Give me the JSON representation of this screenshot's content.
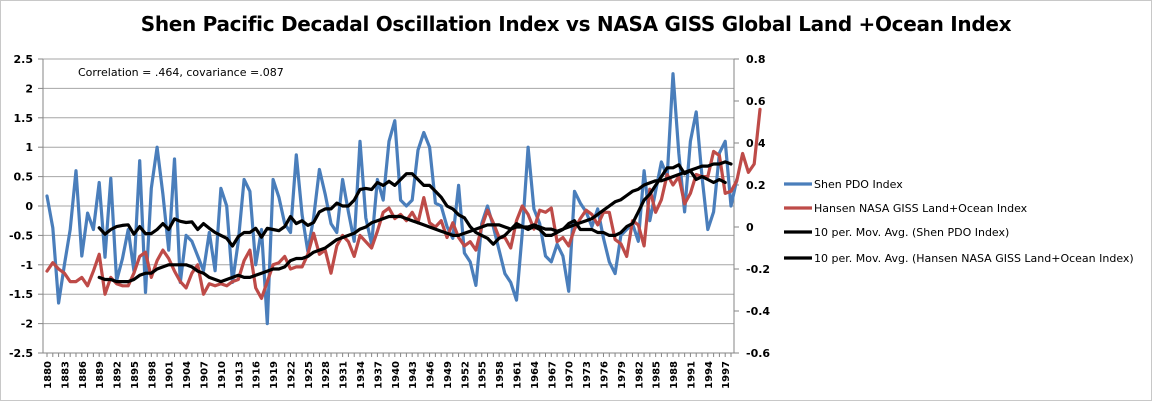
{
  "chart_data": {
    "type": "line",
    "title": "Shen Pacific Decadal Oscillation Index vs NASA GISS Global Land +Ocean Index",
    "annotation": "Correlation = .464, covariance =.087",
    "xlabel": "",
    "ylabel_left": "",
    "ylabel_right": "",
    "x_start": 1880,
    "x_end": 1998,
    "x_tick_labels": [
      "1880",
      "1883",
      "1886",
      "1889",
      "1892",
      "1895",
      "1898",
      "1901",
      "1904",
      "1907",
      "1910",
      "1913",
      "1916",
      "1919",
      "1922",
      "1925",
      "1928",
      "1931",
      "1934",
      "1937",
      "1940",
      "1943",
      "1946",
      "1949",
      "1952",
      "1955",
      "1958",
      "1961",
      "1964",
      "1967",
      "1970",
      "1973",
      "1976",
      "1979",
      "1982",
      "1985",
      "1988",
      "1991",
      "1994",
      "1997"
    ],
    "y_left": {
      "min": -2.5,
      "max": 2.5,
      "step": 0.5,
      "tick_labels": [
        "-2.5",
        "-2",
        "-1.5",
        "-1",
        "-0.5",
        "0",
        "0.5",
        "1",
        "1.5",
        "2",
        "2.5"
      ]
    },
    "y_right": {
      "min": -0.6,
      "max": 0.8,
      "step": 0.2,
      "tick_labels": [
        "-0.6",
        "-0.4",
        "-0.2",
        "0",
        "0.2",
        "0.4",
        "0.6",
        "0.8"
      ]
    },
    "grid": "horizontal",
    "legend_position": "right",
    "series": [
      {
        "name": "Shen PDO Index",
        "axis": "left",
        "color": "#4a7ebb",
        "values": [
          0.17,
          -0.37,
          -1.65,
          -1.0,
          -0.4,
          0.6,
          -0.85,
          -0.12,
          -0.4,
          0.4,
          -0.87,
          0.47,
          -1.27,
          -0.9,
          -0.4,
          -1.1,
          0.77,
          -1.47,
          0.3,
          1.0,
          0.2,
          -0.75,
          0.8,
          -1.3,
          -0.5,
          -0.6,
          -0.85,
          -1.1,
          -0.45,
          -1.1,
          0.3,
          0.0,
          -1.3,
          -0.6,
          0.45,
          0.25,
          -1.0,
          -0.4,
          -2.0,
          0.45,
          0.15,
          -0.3,
          -0.45,
          0.87,
          -0.15,
          -0.77,
          -0.2,
          0.62,
          0.2,
          -0.3,
          -0.45,
          0.45,
          -0.1,
          -0.6,
          1.1,
          -0.2,
          -0.65,
          0.45,
          0.1,
          1.1,
          1.45,
          0.1,
          0.0,
          0.1,
          0.95,
          1.25,
          1.0,
          0.05,
          0.0,
          -0.35,
          -0.55,
          0.35,
          -0.8,
          -0.95,
          -1.35,
          -0.3,
          0.0,
          -0.35,
          -0.75,
          -1.15,
          -1.3,
          -1.6,
          -0.45,
          1.0,
          -0.05,
          -0.3,
          -0.85,
          -0.95,
          -0.65,
          -0.85,
          -1.45,
          0.25,
          0.05,
          -0.1,
          -0.35,
          -0.05,
          -0.55,
          -0.95,
          -1.15,
          -0.5,
          -0.4,
          -0.3,
          -0.6,
          0.6,
          -0.25,
          0.25,
          0.75,
          0.5,
          2.25,
          0.9,
          -0.1,
          1.1,
          1.6,
          0.5,
          -0.4,
          -0.1,
          0.9,
          1.1,
          0.0,
          0.45
        ]
      },
      {
        "name": "Hansen NASA GISS Land+Ocean Index",
        "axis": "right",
        "color": "#be4b48",
        "values": [
          -0.21,
          -0.17,
          -0.2,
          -0.22,
          -0.26,
          -0.26,
          -0.24,
          -0.28,
          -0.21,
          -0.13,
          -0.32,
          -0.24,
          -0.27,
          -0.28,
          -0.28,
          -0.22,
          -0.14,
          -0.12,
          -0.24,
          -0.16,
          -0.11,
          -0.15,
          -0.21,
          -0.26,
          -0.29,
          -0.22,
          -0.18,
          -0.32,
          -0.27,
          -0.28,
          -0.27,
          -0.28,
          -0.26,
          -0.25,
          -0.16,
          -0.11,
          -0.29,
          -0.34,
          -0.26,
          -0.18,
          -0.17,
          -0.14,
          -0.2,
          -0.19,
          -0.19,
          -0.13,
          -0.03,
          -0.13,
          -0.11,
          -0.22,
          -0.09,
          -0.04,
          -0.07,
          -0.14,
          -0.04,
          -0.07,
          -0.1,
          -0.02,
          0.07,
          0.09,
          0.04,
          0.06,
          0.03,
          0.07,
          0.02,
          0.14,
          0.02,
          0.0,
          0.03,
          -0.05,
          0.02,
          -0.05,
          -0.09,
          -0.07,
          -0.11,
          0.0,
          0.08,
          0.02,
          -0.05,
          -0.05,
          -0.1,
          0.03,
          0.1,
          0.06,
          -0.01,
          0.08,
          0.07,
          0.09,
          -0.07,
          -0.05,
          -0.09,
          -0.01,
          0.04,
          0.08,
          0.06,
          0.01,
          0.07,
          0.07,
          -0.06,
          -0.08,
          -0.14,
          0.03,
          0.01,
          -0.09,
          0.18,
          0.07,
          0.13,
          0.25,
          0.2,
          0.24,
          0.11,
          0.16,
          0.25,
          0.24,
          0.24,
          0.36,
          0.34,
          0.16,
          0.17,
          0.22,
          0.35,
          0.26,
          0.3,
          0.56
        ]
      },
      {
        "name": "10 per. Mov. Avg. (Shen PDO Index)",
        "axis": "left",
        "color": "#000000",
        "start_index": 9,
        "values": [
          -0.37,
          -0.48,
          -0.4,
          -0.35,
          -0.33,
          -0.32,
          -0.48,
          -0.35,
          -0.47,
          -0.47,
          -0.4,
          -0.3,
          -0.4,
          -0.22,
          -0.26,
          -0.28,
          -0.27,
          -0.4,
          -0.3,
          -0.38,
          -0.45,
          -0.5,
          -0.55,
          -0.68,
          -0.52,
          -0.45,
          -0.45,
          -0.38,
          -0.53,
          -0.38,
          -0.4,
          -0.42,
          -0.35,
          -0.18,
          -0.3,
          -0.25,
          -0.33,
          -0.28,
          -0.1,
          -0.05,
          -0.05,
          0.05,
          0.0,
          0.0,
          0.1,
          0.28,
          0.3,
          0.28,
          0.4,
          0.35,
          0.42,
          0.35,
          0.45,
          0.55,
          0.55,
          0.45,
          0.35,
          0.35,
          0.25,
          0.15,
          0.0,
          -0.05,
          -0.15,
          -0.2,
          -0.35,
          -0.45,
          -0.5,
          -0.55,
          -0.65,
          -0.55,
          -0.5,
          -0.4,
          -0.3,
          -0.35,
          -0.4,
          -0.35,
          -0.4,
          -0.5,
          -0.5,
          -0.45,
          -0.4,
          -0.3,
          -0.25,
          -0.4,
          -0.4,
          -0.4,
          -0.45,
          -0.45,
          -0.5,
          -0.5,
          -0.45,
          -0.35,
          -0.3,
          -0.1,
          0.1,
          0.2,
          0.35,
          0.5,
          0.65,
          0.65,
          0.7,
          0.55,
          0.6,
          0.45,
          0.5,
          0.45,
          0.4,
          0.45,
          0.4
        ]
      },
      {
        "name": "10 per. Mov. Avg. (Hansen NASA GISS Land+Ocean Index)",
        "axis": "right",
        "color": "#000000",
        "start_index": 9,
        "values": [
          -0.24,
          -0.25,
          -0.25,
          -0.26,
          -0.26,
          -0.26,
          -0.25,
          -0.23,
          -0.22,
          -0.22,
          -0.2,
          -0.19,
          -0.18,
          -0.18,
          -0.18,
          -0.18,
          -0.19,
          -0.21,
          -0.22,
          -0.24,
          -0.25,
          -0.26,
          -0.25,
          -0.24,
          -0.23,
          -0.24,
          -0.24,
          -0.23,
          -0.22,
          -0.21,
          -0.2,
          -0.2,
          -0.19,
          -0.16,
          -0.15,
          -0.15,
          -0.14,
          -0.12,
          -0.11,
          -0.1,
          -0.08,
          -0.06,
          -0.05,
          -0.04,
          -0.03,
          -0.01,
          0.0,
          0.02,
          0.03,
          0.04,
          0.05,
          0.05,
          0.05,
          0.04,
          0.03,
          0.02,
          0.01,
          0.0,
          -0.01,
          -0.02,
          -0.03,
          -0.04,
          -0.04,
          -0.03,
          -0.02,
          -0.01,
          0.0,
          0.01,
          0.01,
          0.01,
          0.0,
          -0.01,
          0.0,
          0.0,
          0.0,
          0.01,
          0.0,
          -0.01,
          -0.01,
          -0.02,
          -0.01,
          0.0,
          0.01,
          0.02,
          0.03,
          0.04,
          0.06,
          0.08,
          0.1,
          0.12,
          0.13,
          0.15,
          0.17,
          0.18,
          0.2,
          0.21,
          0.22,
          0.22,
          0.23,
          0.24,
          0.25,
          0.26,
          0.27,
          0.28,
          0.29,
          0.29,
          0.3,
          0.3,
          0.31,
          0.3
        ]
      }
    ]
  }
}
